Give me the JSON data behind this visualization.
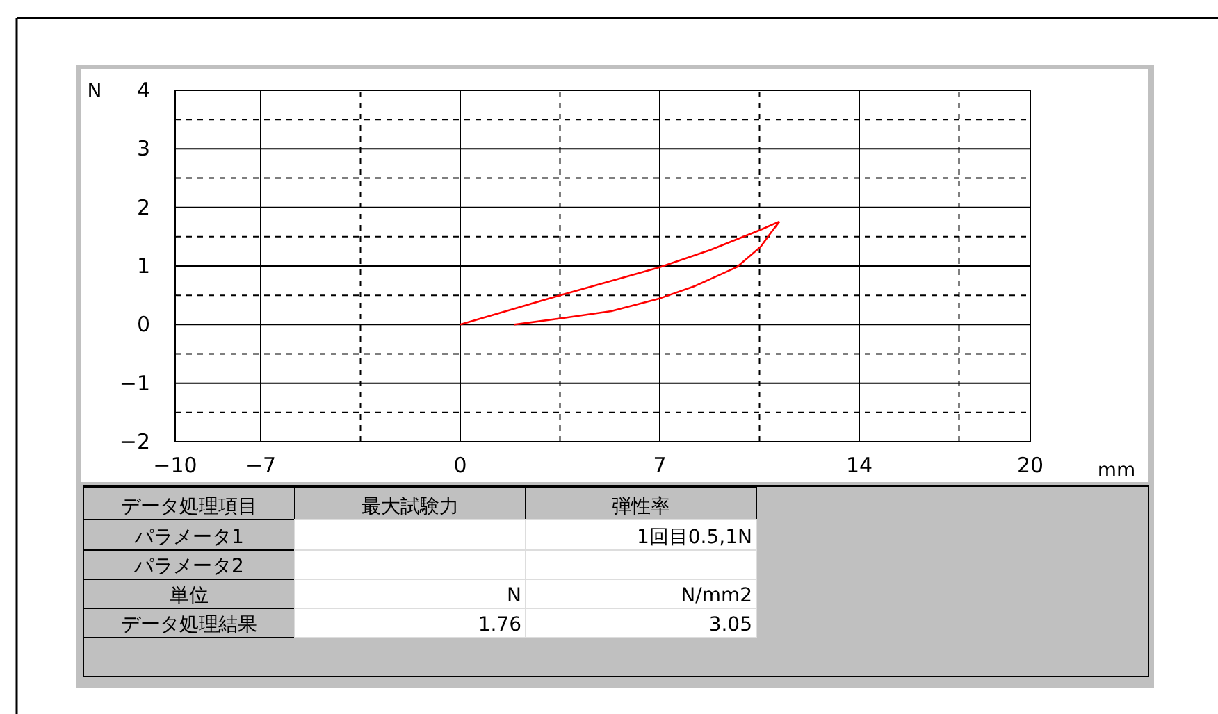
{
  "chart_data": {
    "type": "line",
    "xlabel": "mm",
    "ylabel": "N",
    "xlim": [
      -10,
      20
    ],
    "xticks": [
      -10,
      -7,
      0,
      7,
      14,
      20
    ],
    "ylim": [
      -2,
      4
    ],
    "yticks": [
      -2,
      -1,
      0,
      1,
      2,
      3,
      4
    ],
    "grid": true,
    "series": [
      {
        "color": "#ff0000",
        "x": [
          0,
          1.75,
          3.5,
          5.25,
          7,
          8.75,
          10.5,
          11.2
        ],
        "values": [
          0,
          0.25,
          0.5,
          0.74,
          0.98,
          1.27,
          1.61,
          1.76
        ]
      },
      {
        "color": "#ff0000",
        "x": [
          1.9,
          3.6,
          5.3,
          7.02,
          8.24,
          9.7,
          10.54,
          10.9,
          11.2
        ],
        "values": [
          0,
          0.11,
          0.23,
          0.45,
          0.66,
          0.98,
          1.33,
          1.57,
          1.76
        ]
      }
    ],
    "annotations": [
      "データ処理項目",
      "最大試験力",
      "弾性率",
      "パラメータ1",
      "1回目0.5,1N",
      "パラメータ2",
      "単位",
      "N",
      "N/mm2",
      "データ処理結果",
      "1.76",
      "3.05"
    ]
  }
}
